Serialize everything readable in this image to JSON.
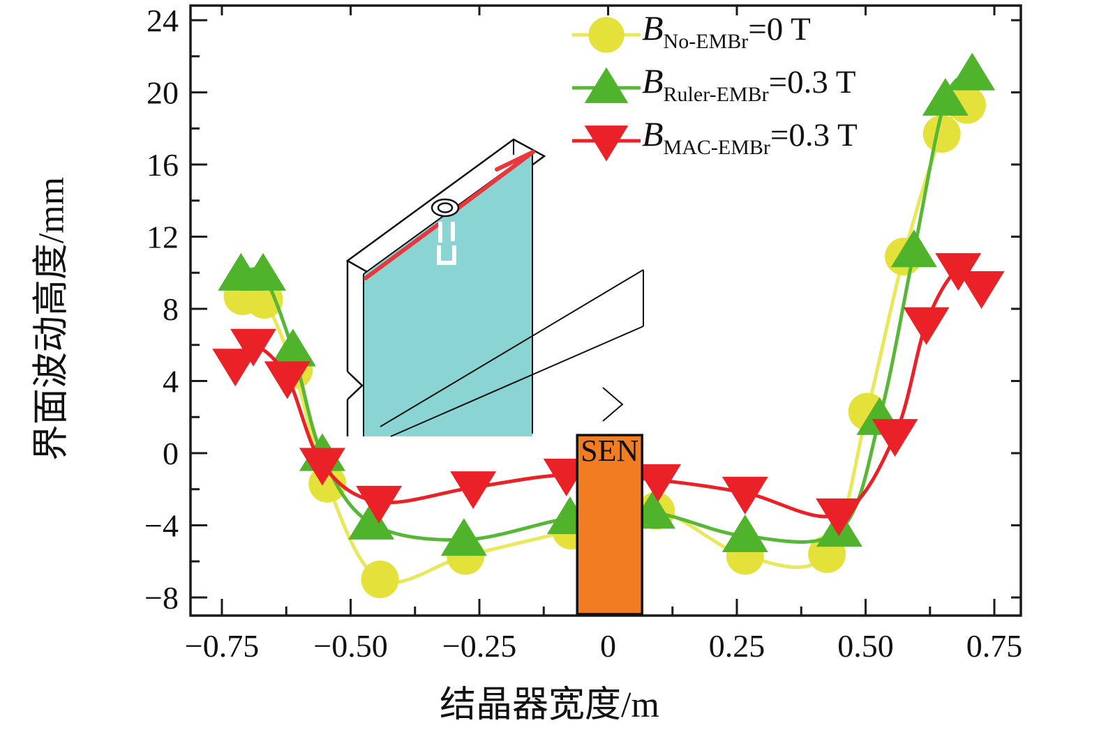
{
  "chart_data": {
    "type": "line",
    "title": "",
    "xlabel": "结晶器宽度/m",
    "ylabel": "界面波动高度/mm",
    "xlim": [
      -0.81,
      0.8
    ],
    "ylim": [
      -9.0,
      24.8
    ],
    "grid": false,
    "xticks": {
      "values": [
        -0.75,
        -0.5,
        -0.25,
        0,
        0.25,
        0.5,
        0.75
      ],
      "labels": [
        "−0.75",
        "−0.50",
        "−0.25",
        "0",
        "0.25",
        "0.50",
        "0.75"
      ],
      "minor_step": 0.125
    },
    "yticks": {
      "values": [
        -8,
        -4,
        0,
        4,
        8,
        12,
        16,
        20,
        24
      ],
      "labels": [
        "−8",
        "−4",
        "0",
        "4",
        "8",
        "12",
        "16",
        "20",
        "24"
      ],
      "minor_step": 2
    },
    "legend": {
      "position": "upper center",
      "items": [
        {
          "symbol": "B",
          "subscript": "No-EMBr",
          "value_text": "=0 T",
          "marker": "circle",
          "color": "#e4e23a",
          "line_color": "#e9e75a"
        },
        {
          "symbol": "B",
          "subscript": "Ruler-EMBr",
          "value_text": "=0.3 T",
          "marker": "triangle-up",
          "color": "#4fb32c",
          "line_color": "#57b837"
        },
        {
          "symbol": "B",
          "subscript": "MAC-EMBr",
          "value_text": "=0.3 T",
          "marker": "triangle-down",
          "color": "#ea2227",
          "line_color": "#ea2227"
        }
      ]
    },
    "series": [
      {
        "name": "B No-EMBr = 0 T",
        "marker": "circle",
        "color": "#e4e23a",
        "line_color": "#e9e75a",
        "x": [
          -0.71,
          -0.668,
          -0.61,
          -0.545,
          -0.443,
          -0.277,
          -0.072,
          0.093,
          0.266,
          0.425,
          0.503,
          0.574,
          0.648,
          0.697
        ],
        "y": [
          8.7,
          8.5,
          4.6,
          -1.7,
          -7.0,
          -5.7,
          -4.3,
          -3.2,
          -5.7,
          -5.6,
          2.3,
          10.9,
          17.7,
          19.3
        ]
      },
      {
        "name": "B Ruler-EMBr = 0.3 T",
        "marker": "triangle-up",
        "color": "#4fb32c",
        "line_color": "#57b837",
        "x": [
          -0.713,
          -0.67,
          -0.612,
          -0.555,
          -0.46,
          -0.28,
          -0.074,
          0.086,
          0.266,
          0.449,
          0.527,
          0.594,
          0.655,
          0.707
        ],
        "y": [
          9.9,
          9.9,
          5.7,
          -0.1,
          -3.9,
          -4.8,
          -3.6,
          -3.3,
          -4.6,
          -4.3,
          1.9,
          11.2,
          19.6,
          21.0
        ]
      },
      {
        "name": "B MAC-EMBr = 0.3 T",
        "marker": "triangle-down",
        "color": "#ea2227",
        "line_color": "#ea2227",
        "x": [
          -0.724,
          -0.689,
          -0.623,
          -0.555,
          -0.445,
          -0.262,
          -0.081,
          0.097,
          0.266,
          0.448,
          0.557,
          0.618,
          0.68,
          0.725
        ],
        "y": [
          4.9,
          6.0,
          4.2,
          -0.6,
          -2.7,
          -1.9,
          -1.2,
          -1.5,
          -2.2,
          -3.4,
          1.0,
          7.2,
          10.2,
          9.2
        ]
      }
    ],
    "sen_block": {
      "label": "SEN",
      "x_left": -0.06,
      "x_right": 0.066,
      "y_top": 1.0,
      "fill": "#f17c22"
    },
    "inset": {
      "description": "3D mold wireframe with cyan melt region, red meniscus line and SEN nozzle port",
      "cyan": "#8ad4d4",
      "red": "#e8373d"
    }
  }
}
